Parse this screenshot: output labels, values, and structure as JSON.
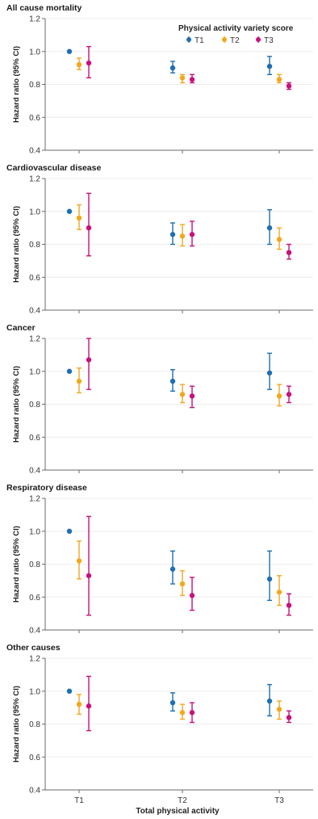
{
  "figure": {
    "xlabel": "Total physical activity",
    "ylabel": "Hazard ratio (95% CI)",
    "legend_title": "Physical activity variety score"
  },
  "colors": {
    "T1": "#1f6fb2",
    "T2": "#f2a81d",
    "T3": "#c8117c",
    "axis": "#6b6b6b",
    "grid": "#ededed"
  },
  "chart_data": [
    {
      "type": "scatter",
      "title": "All cause mortality",
      "categories": [
        "T1",
        "T2",
        "T3"
      ],
      "ylim": [
        0.4,
        1.2
      ],
      "yticks": [
        0.4,
        0.6,
        0.8,
        1.0,
        1.2
      ],
      "ytick_labels": [
        "0.4",
        "0.6",
        "0.8",
        "1.0",
        "1.2"
      ],
      "legend_position": "top-right",
      "series": [
        {
          "name": "T1",
          "values": [
            1.0,
            0.9,
            0.91
          ],
          "lower": [
            null,
            0.87,
            0.86
          ],
          "upper": [
            null,
            0.94,
            0.97
          ]
        },
        {
          "name": "T2",
          "values": [
            0.92,
            0.84,
            0.83
          ],
          "lower": [
            0.89,
            0.81,
            0.81
          ],
          "upper": [
            0.96,
            0.86,
            0.86
          ]
        },
        {
          "name": "T3",
          "values": [
            0.93,
            0.83,
            0.79
          ],
          "lower": [
            0.84,
            0.81,
            0.77
          ],
          "upper": [
            1.03,
            0.86,
            0.81
          ]
        }
      ]
    },
    {
      "type": "scatter",
      "title": "Cardiovascular disease",
      "categories": [
        "T1",
        "T2",
        "T3"
      ],
      "ylim": [
        0.4,
        1.2
      ],
      "yticks": [
        0.4,
        0.6,
        0.8,
        1.0,
        1.2
      ],
      "ytick_labels": [
        "0.4",
        "0.6",
        "0.8",
        "1.0",
        "1.2"
      ],
      "series": [
        {
          "name": "T1",
          "values": [
            1.0,
            0.86,
            0.9
          ],
          "lower": [
            null,
            0.8,
            0.8
          ],
          "upper": [
            null,
            0.93,
            1.01
          ]
        },
        {
          "name": "T2",
          "values": [
            0.96,
            0.85,
            0.83
          ],
          "lower": [
            0.89,
            0.79,
            0.77
          ],
          "upper": [
            1.04,
            0.92,
            0.9
          ]
        },
        {
          "name": "T3",
          "values": [
            0.9,
            0.86,
            0.75
          ],
          "lower": [
            0.73,
            0.79,
            0.71
          ],
          "upper": [
            1.11,
            0.94,
            0.8
          ]
        }
      ]
    },
    {
      "type": "scatter",
      "title": "Cancer",
      "categories": [
        "T1",
        "T2",
        "T3"
      ],
      "ylim": [
        0.4,
        1.2
      ],
      "yticks": [
        0.4,
        0.6,
        0.8,
        1.0,
        1.2
      ],
      "ytick_labels": [
        "0.4",
        "0.6",
        "0.8",
        "1.0",
        "1.2"
      ],
      "series": [
        {
          "name": "T1",
          "values": [
            1.0,
            0.94,
            0.99
          ],
          "lower": [
            null,
            0.88,
            0.89
          ],
          "upper": [
            null,
            1.01,
            1.11
          ]
        },
        {
          "name": "T2",
          "values": [
            0.94,
            0.86,
            0.85
          ],
          "lower": [
            0.87,
            0.81,
            0.79
          ],
          "upper": [
            1.02,
            0.92,
            0.92
          ]
        },
        {
          "name": "T3",
          "values": [
            1.07,
            0.85,
            0.86
          ],
          "lower": [
            0.89,
            0.78,
            0.81
          ],
          "upper": [
            1.2,
            0.91,
            0.91
          ]
        }
      ]
    },
    {
      "type": "scatter",
      "title": "Respiratory disease",
      "categories": [
        "T1",
        "T2",
        "T3"
      ],
      "ylim": [
        0.4,
        1.2
      ],
      "yticks": [
        0.4,
        0.6,
        0.8,
        1.0,
        1.2
      ],
      "ytick_labels": [
        "0.4",
        "0.6",
        "0.8",
        "1.0",
        "1.2"
      ],
      "series": [
        {
          "name": "T1",
          "values": [
            1.0,
            0.77,
            0.71
          ],
          "lower": [
            null,
            0.68,
            0.58
          ],
          "upper": [
            null,
            0.88,
            0.88
          ]
        },
        {
          "name": "T2",
          "values": [
            0.82,
            0.68,
            0.63
          ],
          "lower": [
            0.71,
            0.61,
            0.55
          ],
          "upper": [
            0.94,
            0.76,
            0.73
          ]
        },
        {
          "name": "T3",
          "values": [
            0.73,
            0.61,
            0.55
          ],
          "lower": [
            0.49,
            0.52,
            0.49
          ],
          "upper": [
            1.09,
            0.72,
            0.62
          ]
        }
      ]
    },
    {
      "type": "scatter",
      "title": "Other causes",
      "categories": [
        "T1",
        "T2",
        "T3"
      ],
      "ylim": [
        0.4,
        1.2
      ],
      "yticks": [
        0.4,
        0.6,
        0.8,
        1.0,
        1.2
      ],
      "ytick_labels": [
        "0.4",
        "0.6",
        "0.8",
        "1.0",
        "1.2"
      ],
      "series": [
        {
          "name": "T1",
          "values": [
            1.0,
            0.93,
            0.94
          ],
          "lower": [
            null,
            0.88,
            0.85
          ],
          "upper": [
            null,
            0.99,
            1.04
          ]
        },
        {
          "name": "T2",
          "values": [
            0.92,
            0.87,
            0.89
          ],
          "lower": [
            0.86,
            0.83,
            0.83
          ],
          "upper": [
            0.98,
            0.92,
            0.94
          ]
        },
        {
          "name": "T3",
          "values": [
            0.91,
            0.87,
            0.84
          ],
          "lower": [
            0.76,
            0.81,
            0.81
          ],
          "upper": [
            1.09,
            0.93,
            0.88
          ]
        }
      ]
    }
  ]
}
